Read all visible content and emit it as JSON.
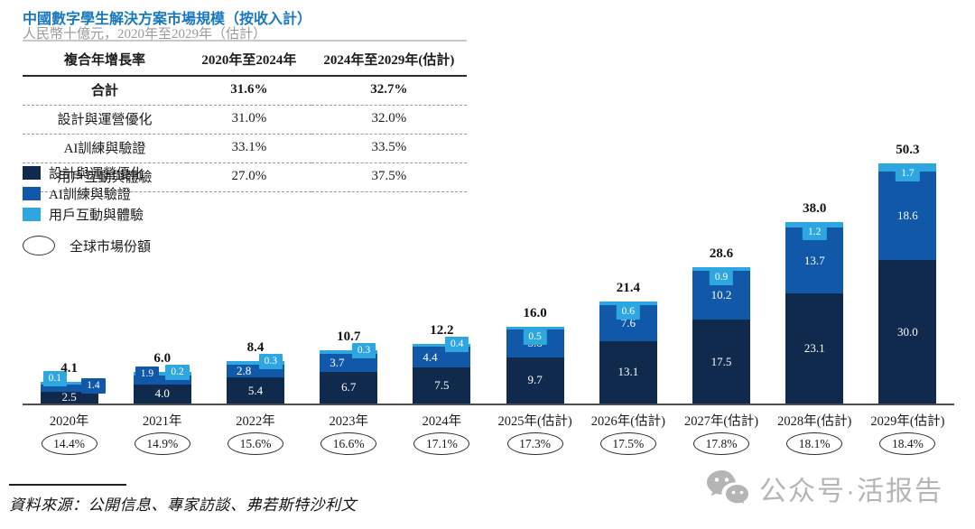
{
  "header": {
    "title": "中國數字學生解決方案市場規模（按收入計）",
    "subtitle": "人民幣十億元，2020年至2029年（估計）"
  },
  "table": {
    "header": [
      "複合年增長率",
      "2020年至2024年",
      "2024年至2029年(估計)"
    ],
    "rows": [
      {
        "label": "合計",
        "v1": "31.6%",
        "v2": "32.7%"
      },
      {
        "label": "設計與運營優化",
        "v1": "31.0%",
        "v2": "32.0%"
      },
      {
        "label": "AI訓練與驗證",
        "v1": "33.1%",
        "v2": "33.5%"
      },
      {
        "label": "用戶互動與體驗",
        "v1": "27.0%",
        "v2": "37.5%"
      }
    ]
  },
  "legend": {
    "items": [
      {
        "label": "設計與運營優化",
        "color": "#102a4e"
      },
      {
        "label": "AI訓練與驗證",
        "color": "#1159a8"
      },
      {
        "label": "用戶互動與體驗",
        "color": "#2ea7e0"
      }
    ],
    "ellipse_label": "全球市場份額"
  },
  "chart_data": {
    "type": "bar",
    "stacked": true,
    "title": "中國數字學生解決方案市場規模（按收入計）",
    "ylabel": "人民幣十億元",
    "ylim": [
      0,
      55
    ],
    "grid": false,
    "legend_position": "upper-left",
    "categories": [
      "2020年",
      "2021年",
      "2022年",
      "2023年",
      "2024年",
      "2025年(估計)",
      "2026年(估計)",
      "2027年(估計)",
      "2028年(估計)",
      "2029年(估計)"
    ],
    "series": [
      {
        "name": "設計與運營優化",
        "color": "#102a4e",
        "values": [
          "2.5",
          "4.0",
          "5.4",
          "6.7",
          "7.5",
          "9.7",
          "13.1",
          "17.5",
          "23.1",
          "30.0"
        ]
      },
      {
        "name": "AI訓練與驗證",
        "color": "#1159a8",
        "values": [
          "1.4",
          "1.9",
          "2.8",
          "3.7",
          "4.4",
          "5.8",
          "7.6",
          "10.2",
          "13.7",
          "18.6"
        ]
      },
      {
        "name": "用戶互動與體驗",
        "color": "#2ea7e0",
        "values": [
          "0.1",
          "0.2",
          "0.3",
          "0.3",
          "0.4",
          "0.5",
          "0.6",
          "0.9",
          "1.2",
          "1.7"
        ]
      }
    ],
    "totals": [
      "4.1",
      "6.0",
      "8.4",
      "10.7",
      "12.2",
      "16.0",
      "21.4",
      "28.6",
      "38.0",
      "50.3"
    ],
    "global_share": [
      "14.4%",
      "14.9%",
      "15.6%",
      "16.6%",
      "17.1%",
      "17.3%",
      "17.5%",
      "17.8%",
      "18.1%",
      "18.4%"
    ],
    "label_layout": {
      "mid": [
        "box-right",
        "box-left",
        "in-left",
        "in-left",
        "in-left",
        "in-center",
        "in-center",
        "in-center",
        "in-center",
        "in-center"
      ],
      "light": [
        "box-left",
        "box-right",
        "box-right",
        "box-right",
        "box-right",
        "box-center",
        "box-center",
        "box-center",
        "box-center",
        "box-center"
      ]
    }
  },
  "footer": {
    "source": "資料來源：公開信息、專家訪談、弗若斯特沙利文",
    "watermark": "公众号·活报告"
  }
}
